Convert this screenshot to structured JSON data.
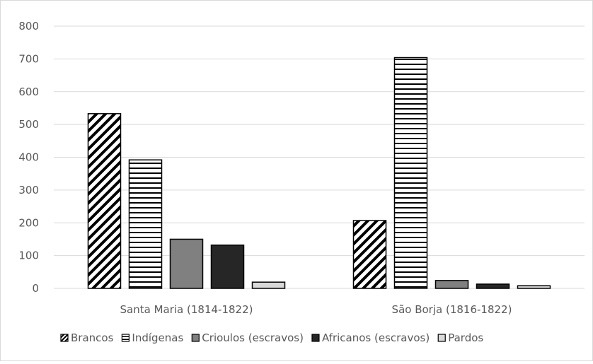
{
  "chart_data": {
    "type": "bar",
    "title": "",
    "xlabel": "",
    "ylabel": "",
    "ylim": [
      0,
      800
    ],
    "yticks": [
      0,
      100,
      200,
      300,
      400,
      500,
      600,
      700,
      800
    ],
    "grid": true,
    "legend_position": "bottom",
    "categories": [
      "Santa Maria (1814-1822)",
      "São Borja (1816-1822)"
    ],
    "series": [
      {
        "name": "Brancos",
        "values": [
          533,
          207
        ],
        "pattern": "diagonal-hatch",
        "color": "#000000"
      },
      {
        "name": "Indígenas",
        "values": [
          392,
          704
        ],
        "pattern": "horizontal-lines",
        "color": "#000000"
      },
      {
        "name": "Crioulos (escravos)",
        "values": [
          150,
          24
        ],
        "pattern": "solid",
        "color": "#808080"
      },
      {
        "name": "Africanos (escravos)",
        "values": [
          132,
          13
        ],
        "pattern": "solid",
        "color": "#262626"
      },
      {
        "name": "Pardos",
        "values": [
          19,
          8
        ],
        "pattern": "solid",
        "color": "#d9d9d9"
      }
    ]
  }
}
